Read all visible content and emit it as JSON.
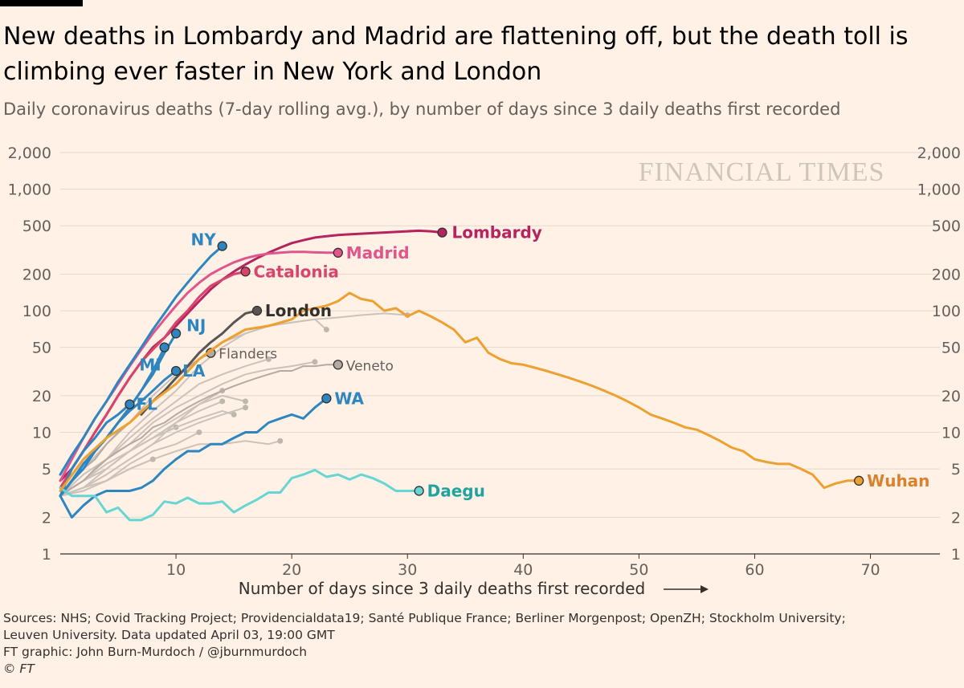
{
  "title": "New deaths in Lombardy and Madrid are flattening off, but the death toll is climbing ever faster in New York and London",
  "subtitle": "Daily coronavirus deaths (7-day rolling avg.), by number of days since 3 daily deaths first recorded",
  "watermark": "FINANCIAL TIMES",
  "footer": {
    "sources": "Sources: NHS; Covid Tracking Project; Providencialdata19; Santé Publique France; Berliner Morgenpost; OpenZH; Stockholm University;",
    "sources2": "Leuven University. Data updated April 03, 19:00 GMT",
    "credit": "FT graphic: John Burn-Murdoch / @jburnmurdoch",
    "copyright": "© FT"
  },
  "chart_data": {
    "type": "line",
    "xlabel": "Number of days since 3 daily deaths first recorded",
    "ylabel": "",
    "yscale": "log",
    "xlim": [
      0,
      76
    ],
    "ylim": [
      1,
      2000
    ],
    "x_ticks": [
      10,
      20,
      30,
      40,
      50,
      60,
      70
    ],
    "y_ticks": [
      1,
      2,
      5,
      10,
      20,
      50,
      100,
      200,
      500,
      1000,
      2000
    ],
    "y_tick_labels": [
      "1",
      "2",
      "5",
      "10",
      "20",
      "50",
      "100",
      "200",
      "500",
      "1,000",
      "2,000"
    ],
    "grid": "horizontal",
    "series": [
      {
        "name": "Lombardy",
        "color": "#b5245f",
        "label_color": "#b5245f",
        "x": [
          0,
          1,
          2,
          3,
          4,
          5,
          6,
          7,
          8,
          9,
          10,
          11,
          12,
          13,
          14,
          15,
          16,
          17,
          18,
          19,
          20,
          21,
          22,
          23,
          24,
          25,
          26,
          27,
          28,
          29,
          30,
          31,
          32,
          33
        ],
        "y": [
          4,
          5,
          7,
          10,
          14,
          20,
          28,
          38,
          50,
          60,
          75,
          95,
          120,
          150,
          180,
          210,
          240,
          270,
          300,
          330,
          360,
          380,
          400,
          410,
          420,
          425,
          430,
          435,
          440,
          445,
          450,
          455,
          450,
          440
        ]
      },
      {
        "name": "Madrid",
        "color": "#e0558b",
        "label_color": "#e0558b",
        "x": [
          0,
          1,
          2,
          3,
          4,
          5,
          6,
          7,
          8,
          9,
          10,
          11,
          12,
          13,
          14,
          15,
          16,
          17,
          18,
          19,
          20,
          21,
          22,
          23,
          24
        ],
        "y": [
          4,
          6,
          9,
          13,
          18,
          25,
          35,
          48,
          65,
          85,
          110,
          140,
          170,
          200,
          225,
          250,
          270,
          285,
          295,
          300,
          305,
          305,
          302,
          300,
          300
        ]
      },
      {
        "name": "Catalonia",
        "color": "#d9446d",
        "label_color": "#d9446d",
        "x": [
          0,
          1,
          2,
          3,
          4,
          5,
          6,
          7,
          8,
          9,
          10,
          11,
          12,
          13,
          14,
          15,
          16
        ],
        "y": [
          3.5,
          5,
          7,
          10,
          14,
          20,
          28,
          38,
          48,
          60,
          80,
          100,
          130,
          160,
          180,
          200,
          210
        ]
      },
      {
        "name": "New York",
        "label": "NY",
        "color": "#2e86c1",
        "label_color": "#2e86c1",
        "x": [
          0,
          1,
          2,
          3,
          4,
          5,
          6,
          7,
          8,
          9,
          10,
          11,
          12,
          13,
          14
        ],
        "y": [
          4.5,
          6.5,
          9,
          13,
          18,
          26,
          36,
          50,
          70,
          95,
          130,
          170,
          220,
          280,
          340
        ]
      },
      {
        "name": "London",
        "color": "#5a5555",
        "label_color": "#33302e",
        "x": [
          7,
          8,
          9,
          10,
          11,
          12,
          13,
          14,
          15,
          16,
          17
        ],
        "y": [
          14,
          18,
          22,
          28,
          35,
          45,
          55,
          65,
          80,
          95,
          100
        ]
      },
      {
        "name": "New Jersey",
        "label": "NJ",
        "color": "#2e86c1",
        "label_color": "#2e86c1",
        "x": [
          0,
          1,
          2,
          3,
          4,
          5,
          6,
          7,
          8,
          9,
          10
        ],
        "y": [
          3,
          4,
          5.5,
          7,
          9,
          12,
          16,
          22,
          30,
          45,
          65
        ]
      },
      {
        "name": "Michigan",
        "label": "MI",
        "color": "#2e86c1",
        "label_color": "#2e86c1",
        "x": [
          0,
          1,
          2,
          3,
          4,
          5,
          6,
          7,
          8,
          9
        ],
        "y": [
          3,
          4,
          5.5,
          7,
          9,
          12,
          16,
          22,
          32,
          50
        ]
      },
      {
        "name": "Louisiana",
        "label": "LA",
        "color": "#2e86c1",
        "label_color": "#2e86c1",
        "x": [
          0,
          1,
          2,
          3,
          4,
          5,
          6,
          7,
          8,
          9,
          10
        ],
        "y": [
          3,
          4,
          5,
          7,
          9,
          12,
          15,
          18,
          22,
          27,
          32
        ]
      },
      {
        "name": "Florida",
        "label": "FL",
        "color": "#2e86c1",
        "label_color": "#2e86c1",
        "x": [
          0,
          1,
          2,
          3,
          4,
          5,
          6
        ],
        "y": [
          3,
          5,
          7,
          9,
          12,
          14,
          17
        ]
      },
      {
        "name": "Washington",
        "label": "WA",
        "color": "#2e86c1",
        "label_color": "#2e86c1",
        "x": [
          0,
          1,
          2,
          3,
          4,
          5,
          6,
          7,
          8,
          9,
          10,
          11,
          12,
          13,
          14,
          15,
          16,
          17,
          18,
          19,
          20,
          21,
          22,
          23
        ],
        "y": [
          3,
          2,
          2.5,
          3,
          3.3,
          3.3,
          3.3,
          3.5,
          4,
          5,
          6,
          7,
          7,
          8,
          8,
          9,
          10,
          10,
          12,
          13,
          14,
          13,
          16,
          19
        ]
      },
      {
        "name": "Flanders",
        "color": "#b5aaa3",
        "label_color": "#66605c",
        "x": [
          0,
          1,
          2,
          3,
          4,
          5,
          6,
          7,
          8,
          9,
          10,
          11,
          12,
          13
        ],
        "y": [
          3,
          4,
          5,
          6,
          8,
          10,
          12,
          15,
          18,
          22,
          28,
          34,
          40,
          45
        ]
      },
      {
        "name": "Veneto",
        "color": "#b5aaa3",
        "label_color": "#66605c",
        "x": [
          0,
          1,
          2,
          3,
          4,
          5,
          6,
          7,
          8,
          9,
          10,
          11,
          12,
          13,
          14,
          15,
          16,
          17,
          18,
          19,
          20,
          21,
          22,
          23,
          24
        ],
        "y": [
          3,
          3.5,
          4,
          5,
          6,
          7,
          8,
          9,
          11,
          12,
          14,
          16,
          18,
          20,
          22,
          24,
          26,
          28,
          30,
          32,
          32,
          35,
          35,
          36,
          36
        ]
      },
      {
        "name": "Daegu",
        "color": "#67d5d4",
        "label_color": "#1ea39f",
        "x": [
          0,
          1,
          2,
          3,
          4,
          5,
          6,
          7,
          8,
          9,
          10,
          11,
          12,
          13,
          14,
          15,
          16,
          17,
          18,
          19,
          20,
          21,
          22,
          23,
          24,
          25,
          26,
          27,
          28,
          29,
          30,
          31
        ],
        "y": [
          3.5,
          3,
          3,
          3,
          2.2,
          2.4,
          1.9,
          1.9,
          2.1,
          2.7,
          2.6,
          2.9,
          2.6,
          2.6,
          2.7,
          2.2,
          2.5,
          2.8,
          3.2,
          3.2,
          4.2,
          4.5,
          4.9,
          4.3,
          4.5,
          4.1,
          4.5,
          4.2,
          3.8,
          3.3,
          3.3,
          3.3
        ]
      },
      {
        "name": "Wuhan",
        "color": "#eca131",
        "label_color": "#d9822b",
        "x": [
          0,
          2,
          4,
          6,
          8,
          10,
          12,
          14,
          16,
          18,
          20,
          21,
          22,
          23,
          24,
          25,
          26,
          27,
          28,
          29,
          30,
          31,
          32,
          33,
          34,
          35,
          36,
          37,
          38,
          39,
          40,
          41,
          42,
          43,
          44,
          45,
          46,
          47,
          48,
          49,
          50,
          51,
          52,
          53,
          54,
          55,
          56,
          57,
          58,
          59,
          60,
          61,
          62,
          63,
          64,
          65,
          66,
          67,
          68,
          69
        ],
        "y": [
          3.3,
          6,
          9,
          12,
          18,
          25,
          40,
          55,
          70,
          75,
          85,
          100,
          105,
          110,
          120,
          140,
          125,
          120,
          100,
          105,
          90,
          100,
          90,
          80,
          70,
          55,
          60,
          45,
          40,
          37,
          36,
          34,
          32,
          30,
          28,
          26,
          24,
          22,
          20,
          18,
          16,
          14,
          13,
          12,
          11,
          10.5,
          9.5,
          8.5,
          7.5,
          7,
          6,
          5.7,
          5.5,
          5.5,
          5,
          4.5,
          3.5,
          3.8,
          4,
          4
        ]
      },
      {
        "name": "",
        "color": "#cbc2bb",
        "x": [
          0,
          2,
          4,
          6,
          8,
          10,
          12,
          14,
          16,
          18,
          20,
          22,
          24,
          26,
          28,
          30
        ],
        "y": [
          3,
          4,
          6,
          10,
          15,
          22,
          35,
          50,
          65,
          75,
          80,
          85,
          88,
          92,
          95,
          92
        ]
      },
      {
        "name": "",
        "color": "#cbc2bb",
        "x": [
          0,
          2,
          4,
          6,
          8,
          10,
          12,
          14,
          16,
          18,
          20,
          22,
          23
        ],
        "y": [
          3,
          5,
          8,
          12,
          20,
          30,
          40,
          55,
          65,
          75,
          80,
          85,
          70
        ]
      },
      {
        "name": "",
        "color": "#cbc2bb",
        "x": [
          0,
          2,
          4,
          6,
          8,
          10,
          12,
          14,
          16,
          18
        ],
        "y": [
          3,
          4.5,
          6,
          9,
          13,
          18,
          25,
          30,
          35,
          40
        ]
      },
      {
        "name": "",
        "color": "#cbc2bb",
        "x": [
          0,
          2,
          4,
          6,
          8,
          10,
          12,
          14,
          16
        ],
        "y": [
          3,
          3.5,
          5,
          7,
          10,
          13,
          17,
          20,
          18
        ]
      },
      {
        "name": "",
        "color": "#cbc2bb",
        "x": [
          0,
          2,
          4,
          6,
          8,
          10,
          12,
          14,
          16,
          18,
          19
        ],
        "y": [
          3,
          3.3,
          4,
          5,
          6,
          7,
          8,
          8,
          8.5,
          8,
          8.5
        ]
      },
      {
        "name": "",
        "color": "#cbc2bb",
        "x": [
          0,
          2,
          4,
          6,
          8,
          10,
          12,
          14,
          16,
          18,
          20,
          22
        ],
        "y": [
          3,
          4,
          6,
          8,
          12,
          16,
          20,
          25,
          30,
          33,
          35,
          38
        ]
      },
      {
        "name": "",
        "color": "#cbc2bb",
        "x": [
          0,
          2,
          4,
          6,
          8,
          10,
          12,
          14,
          16
        ],
        "y": [
          3,
          3.5,
          4.5,
          6,
          8,
          10,
          12,
          14,
          16
        ]
      },
      {
        "name": "",
        "color": "#cbc2bb",
        "x": [
          0,
          2,
          4,
          6,
          8,
          10,
          12,
          14
        ],
        "y": [
          3,
          4,
          5,
          7,
          9,
          12,
          15,
          18
        ]
      },
      {
        "name": "",
        "color": "#cbc2bb",
        "x": [
          0,
          2,
          4,
          6,
          8,
          10,
          12
        ],
        "y": [
          3,
          3.5,
          4,
          5.5,
          7,
          8,
          10
        ]
      },
      {
        "name": "",
        "color": "#cbc2bb",
        "x": [
          0,
          2,
          4,
          6,
          8,
          10
        ],
        "y": [
          3,
          4,
          5,
          7,
          9,
          11
        ]
      },
      {
        "name": "",
        "color": "#cbc2bb",
        "x": [
          0,
          2,
          4,
          6,
          8
        ],
        "y": [
          3,
          3.3,
          4,
          5,
          6
        ]
      },
      {
        "name": "",
        "color": "#cbc2bb",
        "x": [
          0,
          2,
          4,
          6,
          8,
          10,
          12,
          14
        ],
        "y": [
          3,
          3.5,
          4.5,
          6,
          8,
          12,
          17,
          22
        ]
      },
      {
        "name": "",
        "color": "#cbc2bb",
        "x": [
          0,
          2,
          4,
          6,
          8,
          10,
          12,
          14,
          15
        ],
        "y": [
          3,
          4,
          5.5,
          7,
          9,
          11,
          13,
          15,
          14
        ]
      }
    ]
  }
}
